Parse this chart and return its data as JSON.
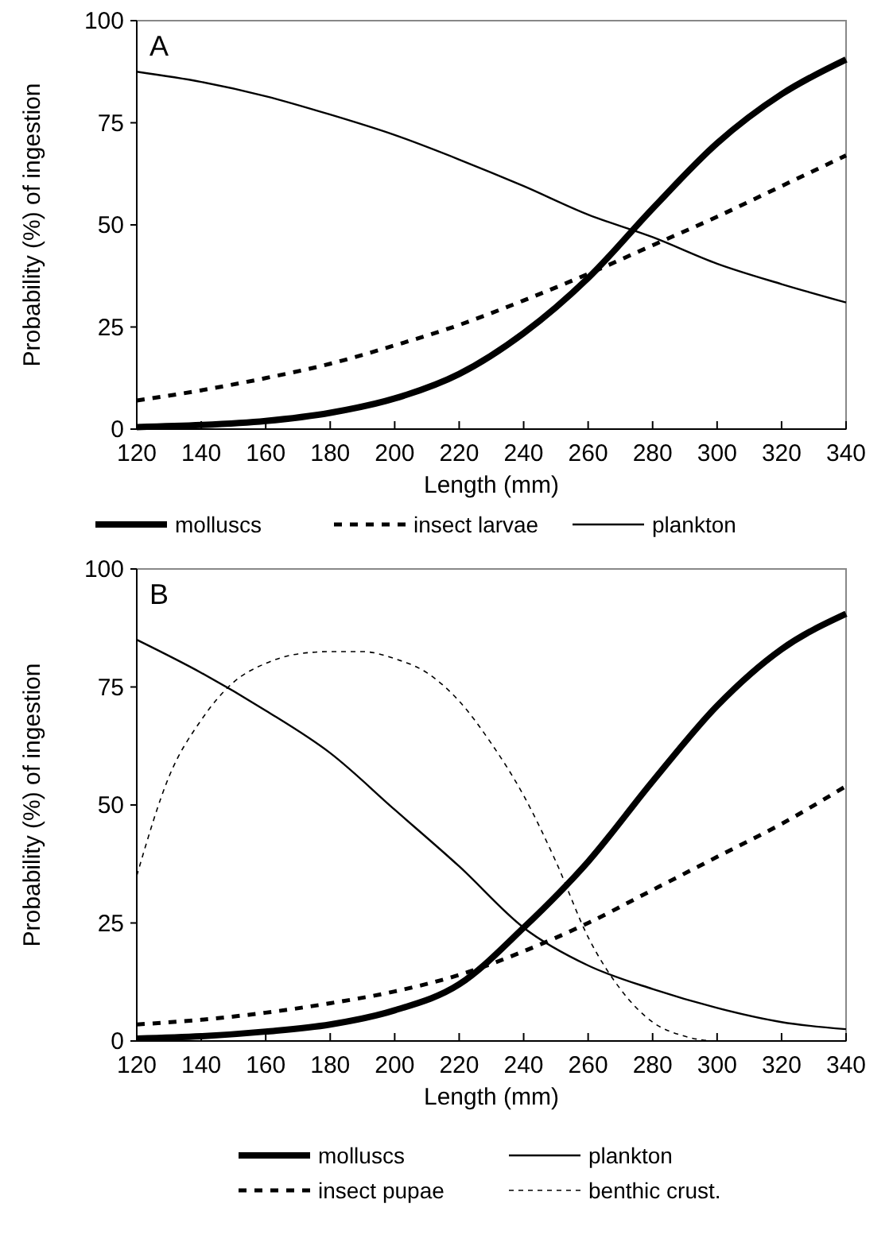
{
  "chart_data": [
    {
      "type": "line",
      "title": "A",
      "xlabel": "Length (mm)",
      "ylabel": "Probability (%) of ingestion",
      "x": [
        120,
        140,
        160,
        180,
        200,
        220,
        240,
        260,
        280,
        300,
        320,
        340
      ],
      "xlim": [
        120,
        340
      ],
      "xticks": [
        120,
        140,
        160,
        180,
        200,
        220,
        240,
        260,
        280,
        300,
        320,
        340
      ],
      "ylim": [
        0,
        100
      ],
      "yticks": [
        0,
        25,
        50,
        75,
        100
      ],
      "grid": false,
      "legend": "bottom",
      "marker": "none",
      "series": [
        {
          "name": "molluscs",
          "color": "#000000",
          "line_style": "solid",
          "values": [
            0.5,
            1,
            2,
            4,
            7.5,
            13.5,
            23.5,
            37,
            54,
            70,
            82,
            90.5
          ]
        },
        {
          "name": "insect larvae",
          "color": "#000000",
          "line_style": "dashed",
          "values": [
            7,
            9.5,
            12.5,
            16,
            20.5,
            25.5,
            31.5,
            38,
            45,
            52,
            59.5,
            67
          ]
        },
        {
          "name": "plankton",
          "color": "#000000",
          "line_style": "solid",
          "values": [
            87.5,
            85,
            81.5,
            77,
            72,
            66,
            59.5,
            52.5,
            47,
            40.5,
            35.5,
            31
          ]
        }
      ]
    },
    {
      "type": "line",
      "title": "B",
      "xlabel": "Length (mm)",
      "ylabel": "Probability (%) of ingestion",
      "x": [
        120,
        140,
        160,
        180,
        200,
        220,
        240,
        260,
        280,
        300,
        320,
        340
      ],
      "xlim": [
        120,
        340
      ],
      "xticks": [
        120,
        140,
        160,
        180,
        200,
        220,
        240,
        260,
        280,
        300,
        320,
        340
      ],
      "ylim": [
        0,
        100
      ],
      "yticks": [
        0,
        25,
        50,
        75,
        100
      ],
      "grid": false,
      "legend": "bottom",
      "marker": "none",
      "series": [
        {
          "name": "molluscs",
          "color": "#000000",
          "line_style": "solid",
          "values": [
            0.5,
            1,
            2,
            3.5,
            6.5,
            12,
            24,
            38,
            55,
            71,
            83,
            90.5
          ]
        },
        {
          "name": "plankton",
          "color": "#000000",
          "line_style": "solid",
          "values": [
            85,
            78,
            70,
            61,
            49,
            37,
            24,
            16,
            11,
            7,
            4,
            2.5
          ]
        },
        {
          "name": "insect pupae",
          "color": "#000000",
          "line_style": "dashed",
          "values": [
            3.5,
            4.5,
            6,
            8,
            10.5,
            14,
            19,
            25,
            32,
            39,
            46,
            54
          ]
        },
        {
          "name": "benthic crust.",
          "color": "#000000",
          "line_style": "dotted",
          "x": [
            120,
            130,
            140,
            150,
            160,
            170,
            180,
            190,
            200,
            210,
            220,
            230,
            240,
            250,
            260,
            270,
            280,
            290,
            300,
            320,
            340
          ],
          "values": [
            35,
            56,
            68,
            76,
            80,
            82,
            82.5,
            82.5,
            81,
            78,
            72,
            63,
            52,
            38,
            22,
            11,
            4,
            1,
            0,
            0,
            0
          ]
        }
      ]
    }
  ]
}
